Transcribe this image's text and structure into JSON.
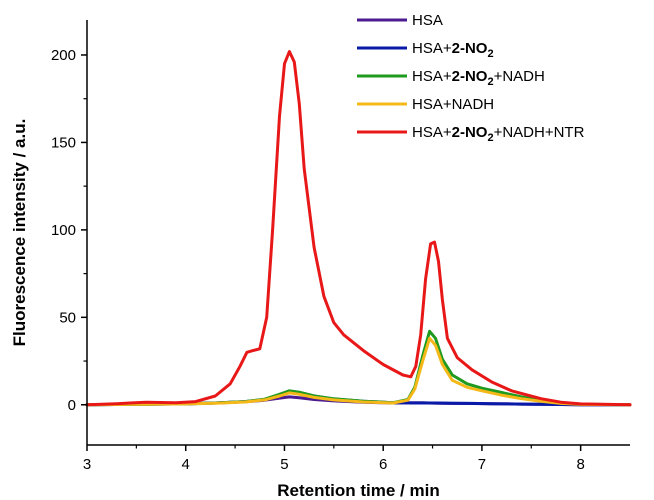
{
  "chart_data": {
    "type": "line",
    "xlabel": "Retention time / min",
    "ylabel": "Fluorescence intensity / a.u.",
    "xlim": [
      3,
      8.5
    ],
    "ylim": [
      -23,
      220
    ],
    "xticks": [
      3,
      4,
      5,
      6,
      7,
      8
    ],
    "yticks": [
      0,
      50,
      100,
      150,
      200
    ],
    "grid": false,
    "legend_position": "top-right",
    "series": [
      {
        "name": "HSA",
        "legend": {
          "pre": "HSA",
          "bold": "",
          "sub": "",
          "post": ""
        },
        "color": "#4b1b8f",
        "x": [
          3.0,
          3.6,
          4.0,
          4.3,
          4.6,
          4.8,
          4.95,
          5.05,
          5.15,
          5.3,
          5.5,
          5.8,
          6.1,
          6.3,
          6.4,
          6.47,
          6.55,
          6.7,
          6.9,
          7.1,
          7.4,
          7.7,
          8.0,
          8.5
        ],
        "y": [
          0,
          0.3,
          0.5,
          1.0,
          1.7,
          2.6,
          3.8,
          4.5,
          4.0,
          3.0,
          2.2,
          1.5,
          1.0,
          1.2,
          1.1,
          1.0,
          0.9,
          0.8,
          0.7,
          0.6,
          0.4,
          0.2,
          0,
          0
        ]
      },
      {
        "name": "HSA+2-NO2",
        "legend": {
          "pre": "HSA+",
          "bold": "2-NO",
          "sub": "2",
          "post": ""
        },
        "color": "#0a1aa8",
        "x": [
          3.0,
          3.6,
          4.0,
          4.3,
          4.6,
          4.8,
          4.95,
          5.05,
          5.15,
          5.3,
          5.5,
          5.8,
          6.1,
          6.3,
          6.4,
          6.47,
          6.55,
          6.7,
          6.9,
          7.1,
          7.4,
          7.7,
          8.0,
          8.5
        ],
        "y": [
          0,
          0.3,
          0.5,
          1.0,
          1.8,
          3.0,
          5.5,
          7.5,
          7.0,
          5.0,
          3.3,
          2.0,
          1.2,
          1.0,
          1.0,
          1.0,
          1.0,
          0.9,
          0.8,
          0.6,
          0.4,
          0.2,
          0,
          0
        ]
      },
      {
        "name": "HSA+2-NO2+NADH",
        "legend": {
          "pre": "HSA+",
          "bold": "2-NO",
          "sub": "2",
          "post": "+NADH"
        },
        "color": "#1e9a1e",
        "x": [
          3.0,
          3.6,
          4.0,
          4.3,
          4.6,
          4.8,
          4.95,
          5.05,
          5.15,
          5.3,
          5.5,
          5.8,
          6.1,
          6.25,
          6.32,
          6.4,
          6.47,
          6.53,
          6.6,
          6.7,
          6.85,
          7.0,
          7.2,
          7.4,
          7.6,
          7.8,
          8.0,
          8.5
        ],
        "y": [
          0,
          0.3,
          0.6,
          1.0,
          1.8,
          3.2,
          6.0,
          8.0,
          7.2,
          5.0,
          3.4,
          2.0,
          1.2,
          3.0,
          10.0,
          28.0,
          42.0,
          38.0,
          26.0,
          17.0,
          12.0,
          9.5,
          7.0,
          4.5,
          2.5,
          1.0,
          0.3,
          0
        ]
      },
      {
        "name": "HSA+NADH",
        "legend": {
          "pre": "HSA+NADH",
          "bold": "",
          "sub": "",
          "post": ""
        },
        "color": "#f4b818",
        "x": [
          3.0,
          3.6,
          4.0,
          4.3,
          4.6,
          4.8,
          4.95,
          5.05,
          5.15,
          5.3,
          5.5,
          5.8,
          6.1,
          6.25,
          6.32,
          6.4,
          6.47,
          6.53,
          6.6,
          6.7,
          6.85,
          7.0,
          7.2,
          7.4,
          7.6,
          7.8,
          8.0,
          8.5
        ],
        "y": [
          0,
          0.3,
          0.5,
          0.9,
          1.6,
          2.8,
          5.0,
          6.8,
          6.0,
          4.2,
          2.8,
          1.6,
          1.0,
          2.6,
          9.0,
          25.0,
          38.0,
          34.0,
          23.0,
          14.0,
          10.0,
          8.0,
          5.5,
          3.5,
          2.0,
          0.8,
          0.2,
          0
        ]
      },
      {
        "name": "HSA+2-NO2+NADH+NTR",
        "legend": {
          "pre": "HSA+",
          "bold": "2-NO",
          "sub": "2",
          "post": "+NADH+NTR"
        },
        "color": "#e81818",
        "x": [
          3.0,
          3.3,
          3.6,
          3.9,
          4.1,
          4.3,
          4.45,
          4.55,
          4.62,
          4.68,
          4.75,
          4.82,
          4.88,
          4.95,
          5.0,
          5.05,
          5.1,
          5.15,
          5.2,
          5.3,
          5.4,
          5.5,
          5.6,
          5.8,
          6.0,
          6.2,
          6.28,
          6.33,
          6.38,
          6.43,
          6.48,
          6.52,
          6.56,
          6.6,
          6.65,
          6.75,
          6.9,
          7.1,
          7.3,
          7.6,
          7.8,
          8.0,
          8.5
        ],
        "y": [
          0,
          0.6,
          1.5,
          1.2,
          1.8,
          5.0,
          12.0,
          22.0,
          30.0,
          31.0,
          32.0,
          50.0,
          100.0,
          165.0,
          195.0,
          202.0,
          196.0,
          172.0,
          135.0,
          90.0,
          62.0,
          47.0,
          40.0,
          31.0,
          23.0,
          17.0,
          16.0,
          22.0,
          40.0,
          72.0,
          92.0,
          93.0,
          82.0,
          60.0,
          38.0,
          27.0,
          20.0,
          13.0,
          8.0,
          3.5,
          1.5,
          0.5,
          0
        ]
      }
    ]
  }
}
